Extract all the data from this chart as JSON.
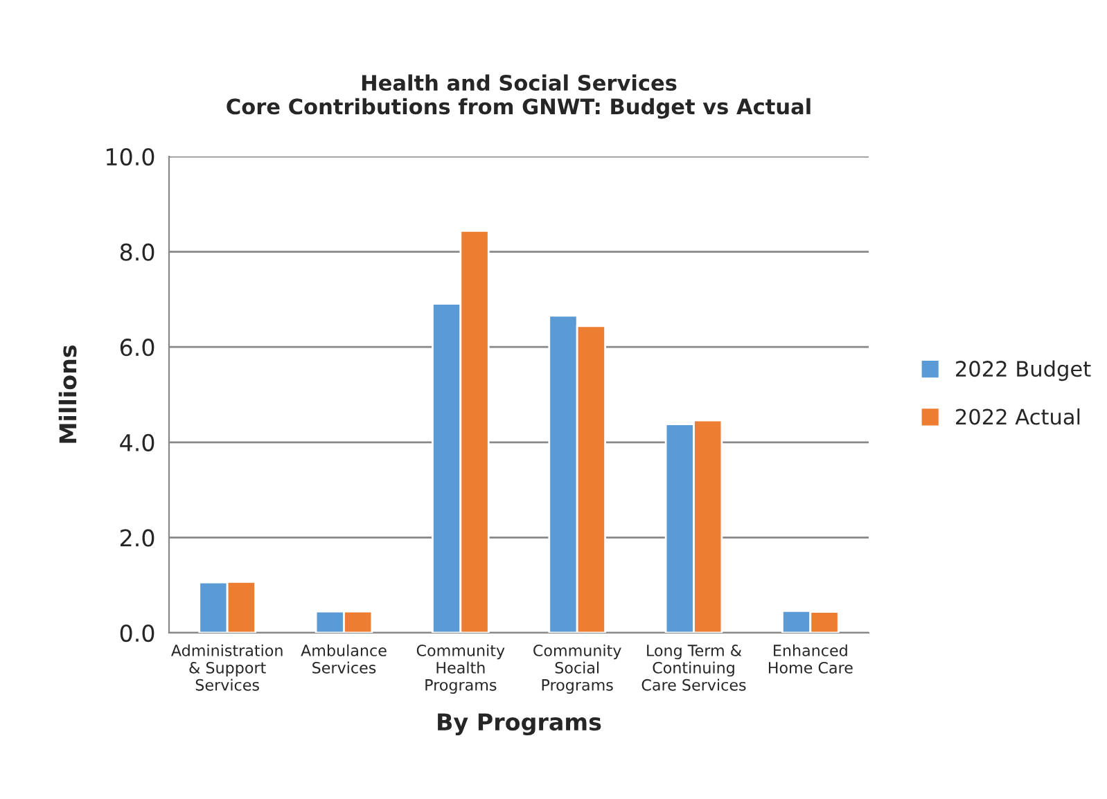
{
  "chart_data": {
    "type": "bar",
    "title": "Health and Social Services\nCore Contributions from GNWT: Budget vs Actual",
    "xlabel": "By Programs",
    "ylabel": "Millions",
    "categories": [
      "Administration\n& Support\nServices",
      "Ambulance\nServices",
      "Community\nHealth\nPrograms",
      "Community\nSocial\nPrograms",
      "Long Term &\nContinuing\nCare Services",
      "Enhanced\nHome Care"
    ],
    "series": [
      {
        "name": "2022 Budget",
        "color": "#5b9bd5",
        "values": [
          1.06,
          0.45,
          6.91,
          6.66,
          4.38,
          0.46
        ]
      },
      {
        "name": "2022 Actual",
        "color": "#ed7d31",
        "values": [
          1.07,
          0.45,
          8.44,
          6.44,
          4.46,
          0.44
        ]
      }
    ],
    "ylim": [
      0,
      10
    ],
    "yticks": [
      {
        "value": 0,
        "label": "0.0"
      },
      {
        "value": 2,
        "label": "2.0"
      },
      {
        "value": 4,
        "label": "4.0"
      },
      {
        "value": 6,
        "label": "6.0"
      },
      {
        "value": 8,
        "label": "8.0"
      },
      {
        "value": 10,
        "label": "10.0"
      }
    ],
    "grid": "y",
    "legend": "right"
  }
}
